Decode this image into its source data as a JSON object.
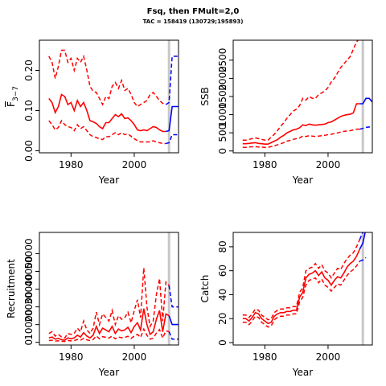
{
  "header": {
    "title": "Fsq, then FMult=2,0",
    "subtitle": "TAC = 158419 (130729;195893)"
  },
  "colors": {
    "historical": "#ff0000",
    "projection": "#0000ff",
    "divider": "#c8c8c8"
  },
  "chart_data": [
    {
      "type": "line",
      "name": "fbar-panel",
      "xlabel": "Year",
      "ylabel": "F",
      "ylabel_subscript": "3−7",
      "xlim": [
        1970,
        2014
      ],
      "ylim": [
        -0.005,
        0.275
      ],
      "xticks": [
        1980,
        2000
      ],
      "yticks": [
        0.0,
        0.1,
        0.2
      ],
      "ytick_labels": [
        "0.00",
        "0.10",
        "0.20"
      ],
      "divider_x": 2011,
      "historical": {
        "x": [
          1973,
          1974,
          1975,
          1976,
          1977,
          1978,
          1979,
          1980,
          1981,
          1982,
          1983,
          1984,
          1985,
          1986,
          1987,
          1988,
          1989,
          1990,
          1991,
          1992,
          1993,
          1994,
          1995,
          1996,
          1997,
          1998,
          1999,
          2000,
          2001,
          2002,
          2003,
          2004,
          2005,
          2006,
          2007,
          2008,
          2009,
          2010
        ],
        "median": [
          0.13,
          0.12,
          0.095,
          0.11,
          0.14,
          0.135,
          0.115,
          0.12,
          0.1,
          0.125,
          0.11,
          0.12,
          0.1,
          0.075,
          0.072,
          0.068,
          0.06,
          0.055,
          0.07,
          0.07,
          0.08,
          0.09,
          0.085,
          0.092,
          0.08,
          0.082,
          0.075,
          0.065,
          0.052,
          0.05,
          0.052,
          0.05,
          0.055,
          0.06,
          0.058,
          0.052,
          0.048,
          0.048
        ],
        "upper": [
          0.235,
          0.22,
          0.18,
          0.21,
          0.25,
          0.25,
          0.22,
          0.23,
          0.2,
          0.23,
          0.22,
          0.235,
          0.2,
          0.16,
          0.148,
          0.145,
          0.13,
          0.115,
          0.135,
          0.13,
          0.16,
          0.17,
          0.155,
          0.175,
          0.15,
          0.155,
          0.14,
          0.12,
          0.11,
          0.115,
          0.12,
          0.125,
          0.14,
          0.145,
          0.135,
          0.125,
          0.118,
          0.115
        ],
        "lower": [
          0.075,
          0.065,
          0.052,
          0.058,
          0.075,
          0.065,
          0.06,
          0.058,
          0.05,
          0.065,
          0.055,
          0.06,
          0.05,
          0.04,
          0.035,
          0.033,
          0.03,
          0.028,
          0.035,
          0.035,
          0.04,
          0.045,
          0.04,
          0.045,
          0.04,
          0.042,
          0.036,
          0.03,
          0.025,
          0.022,
          0.022,
          0.022,
          0.022,
          0.025,
          0.022,
          0.02,
          0.018,
          0.018
        ]
      },
      "projection": {
        "x": [
          2010,
          2011,
          2012,
          2013,
          2014
        ],
        "median": [
          0.048,
          0.05,
          0.11,
          0.11,
          0.11
        ],
        "upper": [
          0.115,
          0.12,
          0.235,
          0.235,
          0.235
        ],
        "lower": [
          0.018,
          0.02,
          0.04,
          0.04,
          0.04
        ]
      }
    },
    {
      "type": "line",
      "name": "ssb-panel",
      "xlabel": "Year",
      "ylabel": "SSB",
      "xlim": [
        1970,
        2014
      ],
      "ylim": [
        -50,
        3050
      ],
      "xticks": [
        1980,
        2000
      ],
      "yticks": [
        0,
        1000,
        2000
      ],
      "ytick_labels": [
        "0",
        "1000",
        "2000"
      ],
      "yticks_minor": [
        500,
        1500,
        2500
      ],
      "ytick_labels_minor": [
        "500",
        "1500",
        "2500"
      ],
      "divider_x": 2011,
      "historical": {
        "x": [
          1973,
          1974,
          1975,
          1976,
          1977,
          1978,
          1979,
          1980,
          1981,
          1982,
          1983,
          1984,
          1985,
          1986,
          1987,
          1988,
          1989,
          1990,
          1991,
          1992,
          1993,
          1994,
          1995,
          1996,
          1997,
          1998,
          1999,
          2000,
          2001,
          2002,
          2003,
          2004,
          2005,
          2006,
          2007,
          2008,
          2009,
          2010
        ],
        "median": [
          200,
          200,
          210,
          220,
          230,
          210,
          200,
          190,
          190,
          230,
          270,
          310,
          380,
          430,
          500,
          540,
          580,
          600,
          640,
          720,
          700,
          740,
          720,
          710,
          720,
          730,
          740,
          780,
          800,
          850,
          900,
          950,
          980,
          1000,
          1010,
          1050,
          1300,
          1300
        ],
        "upper": [
          300,
          300,
          320,
          340,
          360,
          340,
          320,
          300,
          300,
          380,
          460,
          560,
          680,
          780,
          900,
          1000,
          1100,
          1150,
          1250,
          1450,
          1400,
          1500,
          1450,
          1450,
          1550,
          1600,
          1650,
          1750,
          1900,
          2000,
          2150,
          2300,
          2400,
          2500,
          2600,
          2800,
          3000,
          3100
        ],
        "lower": [
          100,
          100,
          110,
          115,
          120,
          110,
          105,
          100,
          100,
          120,
          140,
          170,
          200,
          230,
          270,
          290,
          320,
          340,
          360,
          410,
          400,
          420,
          410,
          400,
          410,
          420,
          430,
          450,
          460,
          480,
          500,
          520,
          540,
          550,
          560,
          580,
          600,
          600
        ]
      },
      "projection": {
        "x": [
          2010,
          2011,
          2012,
          2013,
          2014
        ],
        "median": [
          1300,
          1300,
          1450,
          1450,
          1350
        ],
        "upper": [
          3100,
          3150,
          3250,
          3150,
          3050
        ],
        "lower": [
          600,
          620,
          650,
          660,
          640
        ]
      }
    },
    {
      "type": "line",
      "name": "recruitment-panel",
      "xlabel": "Year",
      "ylabel": "Recruitment",
      "xlim": [
        1970,
        2014
      ],
      "ylim": [
        -1500,
        62000
      ],
      "xticks": [
        1980,
        2000
      ],
      "yticks": [
        0,
        20000,
        40000
      ],
      "ytick_labels": [
        "0",
        "20000",
        "40000"
      ],
      "yticks_minor": [
        10000,
        30000,
        50000
      ],
      "ytick_labels_minor": [
        "10000",
        "30000",
        "50000"
      ],
      "divider_x": 2011,
      "historical": {
        "x": [
          1973,
          1974,
          1975,
          1976,
          1977,
          1978,
          1979,
          1980,
          1981,
          1982,
          1983,
          1984,
          1985,
          1986,
          1987,
          1988,
          1989,
          1990,
          1991,
          1992,
          1993,
          1994,
          1995,
          1996,
          1997,
          1998,
          1999,
          2000,
          2001,
          2002,
          2003,
          2004,
          2005,
          2006,
          2007,
          2008,
          2009,
          2010,
          2011
        ],
        "median": [
          2500,
          3000,
          1800,
          2200,
          1500,
          1200,
          2500,
          2000,
          2500,
          4000,
          3000,
          5500,
          3500,
          2500,
          4000,
          9000,
          5000,
          8000,
          7000,
          6000,
          9000,
          5000,
          7500,
          6500,
          7000,
          8500,
          5500,
          9000,
          11000,
          7000,
          19000,
          10000,
          4500,
          6000,
          13000,
          18000,
          6000,
          16000,
          15000
        ],
        "upper": [
          5000,
          6000,
          3500,
          4500,
          3000,
          2500,
          5000,
          4500,
          5000,
          8000,
          6000,
          12000,
          7000,
          5000,
          8000,
          17000,
          10000,
          16000,
          14000,
          12000,
          18000,
          10000,
          15000,
          13000,
          14000,
          17000,
          11000,
          18000,
          24000,
          14000,
          42000,
          20000,
          9000,
          12000,
          27000,
          36000,
          12000,
          34000,
          32000
        ],
        "lower": [
          1000,
          1200,
          700,
          900,
          600,
          500,
          1000,
          800,
          1000,
          1600,
          1200,
          2200,
          1400,
          1000,
          1600,
          3600,
          2000,
          3200,
          2800,
          2400,
          3600,
          2000,
          3000,
          2600,
          2800,
          3400,
          2200,
          3600,
          4500,
          2800,
          7500,
          4000,
          1800,
          2400,
          5200,
          7200,
          2400,
          6500,
          6000
        ]
      },
      "projection": {
        "x": [
          2011,
          2012,
          2013,
          2014
        ],
        "median": [
          15000,
          10000,
          10000,
          10000
        ],
        "upper": [
          32000,
          20000,
          20000,
          20000
        ],
        "lower": [
          6000,
          1800,
          1800,
          1800
        ]
      }
    },
    {
      "type": "line",
      "name": "catch-panel",
      "xlabel": "Year",
      "ylabel": "Catch",
      "xlim": [
        1970,
        2014
      ],
      "ylim": [
        -2,
        92
      ],
      "xticks": [
        1980,
        2000
      ],
      "yticks": [
        0,
        20,
        40,
        60,
        80
      ],
      "ytick_labels": [
        "0",
        "20",
        "40",
        "60",
        "80"
      ],
      "divider_x": 2011,
      "historical": {
        "x": [
          1973,
          1974,
          1975,
          1976,
          1977,
          1978,
          1979,
          1980,
          1981,
          1982,
          1983,
          1984,
          1985,
          1986,
          1987,
          1988,
          1989,
          1990,
          1991,
          1992,
          1993,
          1994,
          1995,
          1996,
          1997,
          1998,
          1999,
          2000,
          2001,
          2002,
          2003,
          2004,
          2005,
          2006,
          2007,
          2008,
          2009,
          2010
        ],
        "median": [
          20,
          20,
          18,
          21,
          25,
          24,
          20,
          18,
          16,
          17,
          22,
          24,
          25,
          25,
          26,
          26,
          27,
          27,
          38,
          42,
          54,
          57,
          58,
          60,
          56,
          59,
          54,
          52,
          48,
          52,
          55,
          54,
          58,
          63,
          66,
          68,
          72,
          78
        ],
        "upper": [
          23,
          23,
          21,
          24,
          28,
          27,
          23,
          21,
          19,
          20,
          25,
          27,
          28,
          28,
          29,
          29,
          30,
          30,
          42,
          46,
          60,
          62,
          63,
          66,
          62,
          65,
          60,
          58,
          54,
          58,
          62,
          61,
          66,
          70,
          73,
          75,
          80,
          86
        ],
        "lower": [
          17,
          17,
          15,
          18,
          22,
          21,
          17,
          15,
          13,
          14,
          19,
          21,
          22,
          22,
          23,
          23,
          24,
          24,
          34,
          38,
          48,
          52,
          53,
          54,
          50,
          53,
          48,
          46,
          43,
          46,
          49,
          48,
          52,
          56,
          59,
          61,
          64,
          68
        ]
      },
      "projection": {
        "x": [
          2010,
          2011,
          2012
        ],
        "median": [
          78,
          83,
          95
        ],
        "upper": [
          86,
          92,
          100
        ],
        "lower": [
          68,
          69,
          71
        ]
      }
    }
  ]
}
